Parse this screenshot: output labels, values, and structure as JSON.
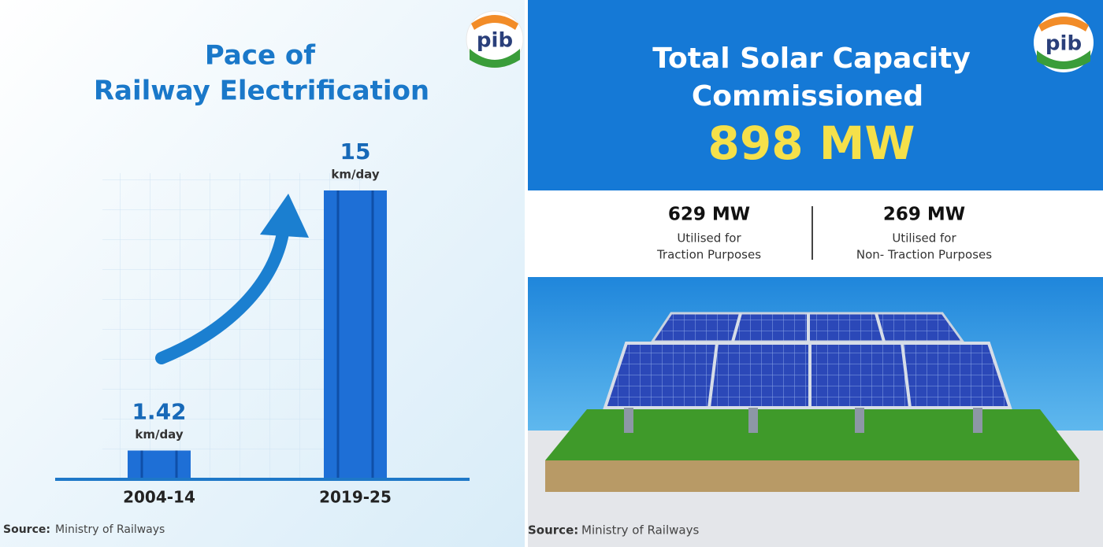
{
  "chart_data": {
    "type": "bar",
    "title": [
      "Pace of",
      "Railway Electrification"
    ],
    "categories": [
      "2004-14",
      "2019-25"
    ],
    "values": [
      1.42,
      15
    ],
    "unit": "km/day",
    "color": "#1e6fd6",
    "source_label": "Source:",
    "source": "Ministry of Railways",
    "logo": "pib"
  },
  "solar_panel": {
    "title": [
      "Total Solar Capacity",
      "Commissioned"
    ],
    "total": "898 MW",
    "stats": [
      {
        "value": "629 MW",
        "label": [
          "Utilised for",
          "Traction Purposes"
        ]
      },
      {
        "value": "269 MW",
        "label": [
          "Utilised for",
          "Non- Traction Purposes"
        ]
      }
    ],
    "source_label": "Source:",
    "source": "Ministry of Railways",
    "logo": "pib"
  }
}
